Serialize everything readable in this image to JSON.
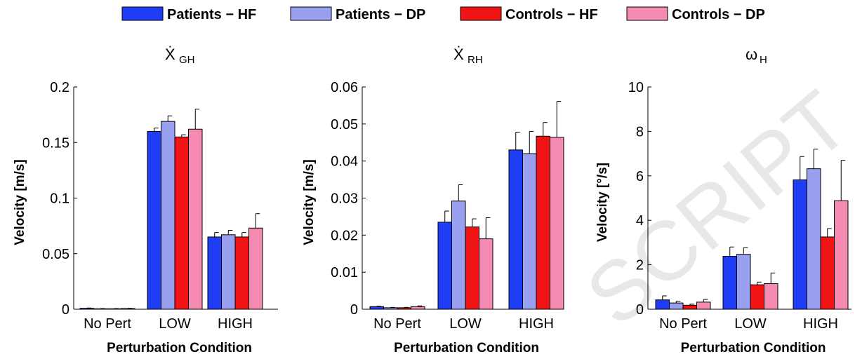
{
  "legend": [
    {
      "name": "Patients − HF",
      "color": "#1f3df5"
    },
    {
      "name": "Patients − DP",
      "color": "#9aa0f0"
    },
    {
      "name": "Controls − HF",
      "color": "#f01414"
    },
    {
      "name": "Controls − DP",
      "color": "#f58ab2"
    }
  ],
  "watermark": "SCRIPT",
  "chart_data": [
    {
      "type": "bar",
      "title": "Ẋ",
      "title_sub": "GH",
      "xlabel": "Perturbation Condition",
      "ylabel": "Velocity [m/s]",
      "ylim": [
        0,
        0.2
      ],
      "yticks": [
        "0",
        "0.05",
        "0.1",
        "0.15",
        "0.2"
      ],
      "ytick_values": [
        0,
        0.05,
        0.1,
        0.15,
        0.2
      ],
      "categories": [
        "No Pert",
        "LOW",
        "HIGH"
      ],
      "series": [
        {
          "name": "Patients − HF",
          "values": [
            0.0008,
            0.16,
            0.065
          ],
          "errors": [
            0.0003,
            0.003,
            0.004
          ]
        },
        {
          "name": "Patients − DP",
          "values": [
            0.0004,
            0.169,
            0.067
          ],
          "errors": [
            0.0002,
            0.005,
            0.004
          ]
        },
        {
          "name": "Controls − HF",
          "values": [
            0.0004,
            0.155,
            0.065
          ],
          "errors": [
            0.0002,
            0.002,
            0.004
          ]
        },
        {
          "name": "Controls − DP",
          "values": [
            0.0006,
            0.162,
            0.073
          ],
          "errors": [
            0.0002,
            0.018,
            0.013
          ]
        }
      ]
    },
    {
      "type": "bar",
      "title": "Ẋ",
      "title_sub": "RH",
      "xlabel": "Perturbation Condition",
      "ylabel": "Velocity [m/s]",
      "ylim": [
        0,
        0.06
      ],
      "yticks": [
        "0",
        "0.01",
        "0.02",
        "0.03",
        "0.04",
        "0.05",
        "0.06"
      ],
      "ytick_values": [
        0,
        0.01,
        0.02,
        0.03,
        0.04,
        0.05,
        0.06
      ],
      "categories": [
        "No Pert",
        "LOW",
        "HIGH"
      ],
      "series": [
        {
          "name": "Patients − HF",
          "values": [
            0.0007,
            0.0235,
            0.043
          ],
          "errors": [
            0.0001,
            0.003,
            0.0048
          ]
        },
        {
          "name": "Patients − DP",
          "values": [
            0.0004,
            0.0292,
            0.042
          ],
          "errors": [
            0.0001,
            0.0044,
            0.006
          ]
        },
        {
          "name": "Controls − HF",
          "values": [
            0.0004,
            0.0222,
            0.0467
          ],
          "errors": [
            0.0001,
            0.0022,
            0.0037
          ]
        },
        {
          "name": "Controls − DP",
          "values": [
            0.0007,
            0.019,
            0.0464
          ],
          "errors": [
            0.0002,
            0.0057,
            0.0097
          ]
        }
      ]
    },
    {
      "type": "bar",
      "title": "ω",
      "title_sub": "H",
      "xlabel": "Perturbation Condition",
      "ylabel": "Velocity [°/s]",
      "ylim": [
        0,
        10
      ],
      "yticks": [
        "0",
        "2",
        "4",
        "6",
        "8",
        "10"
      ],
      "ytick_values": [
        0,
        2,
        4,
        6,
        8,
        10
      ],
      "categories": [
        "No Pert",
        "LOW",
        "HIGH"
      ],
      "series": [
        {
          "name": "Patients − HF",
          "values": [
            0.42,
            2.38,
            5.82
          ],
          "errors": [
            0.18,
            0.42,
            1.05
          ]
        },
        {
          "name": "Patients − DP",
          "values": [
            0.28,
            2.47,
            6.32
          ],
          "errors": [
            0.08,
            0.3,
            0.88
          ]
        },
        {
          "name": "Controls − HF",
          "values": [
            0.18,
            1.1,
            3.25
          ],
          "errors": [
            0.05,
            0.12,
            0.38
          ]
        },
        {
          "name": "Controls − DP",
          "values": [
            0.32,
            1.15,
            4.88
          ],
          "errors": [
            0.12,
            0.48,
            1.82
          ]
        }
      ]
    }
  ]
}
